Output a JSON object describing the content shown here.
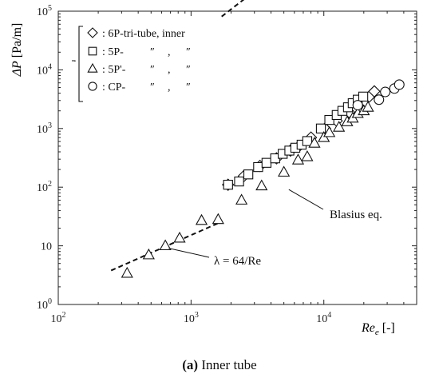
{
  "chart_data": {
    "type": "scatter",
    "xscale": "log",
    "yscale": "log",
    "xlim": [
      100,
      50000
    ],
    "ylim": [
      1,
      100000
    ],
    "x_ticks": [
      {
        "value": 100,
        "base": "10",
        "exp": "2"
      },
      {
        "value": 1000,
        "base": "10",
        "exp": "3"
      },
      {
        "value": 10000,
        "base": "10",
        "exp": "4"
      }
    ],
    "y_ticks": [
      {
        "value": 1,
        "label": "10",
        "exp": "0"
      },
      {
        "value": 10,
        "label": "10",
        "exp": ""
      },
      {
        "value": 100,
        "label": "10",
        "exp": "2"
      },
      {
        "value": 1000,
        "label": "10",
        "exp": "3"
      },
      {
        "value": 10000,
        "label": "10",
        "exp": "4"
      },
      {
        "value": 100000,
        "label": "10",
        "exp": "5"
      }
    ],
    "ylabel": {
      "main": "ΔP",
      "unit": " [Pa/m]"
    },
    "xlabel": {
      "main": "Re",
      "sub": "e",
      "unit": " [-]"
    },
    "legend_position": "top-left",
    "series": [
      {
        "name": "6P-tri-tube, inner",
        "marker": "diamond",
        "label_parts": [
          ": 6P-tri-tube, inner"
        ],
        "points": [
          [
            1900,
            110
          ],
          [
            2500,
            155
          ],
          [
            3300,
            230
          ],
          [
            4400,
            310
          ],
          [
            5600,
            420
          ],
          [
            6500,
            500
          ],
          [
            8000,
            700
          ],
          [
            10200,
            1000
          ],
          [
            12500,
            1350
          ],
          [
            15500,
            1900
          ],
          [
            18000,
            2500
          ],
          [
            22000,
            3500
          ],
          [
            24000,
            4300
          ]
        ]
      },
      {
        "name": "5P-",
        "marker": "square",
        "label_parts": [
          ": 5P-",
          "″",
          ",",
          "″"
        ],
        "points": [
          [
            1900,
            110
          ],
          [
            2300,
            125
          ],
          [
            2700,
            165
          ],
          [
            3200,
            220
          ],
          [
            3700,
            260
          ],
          [
            4300,
            310
          ],
          [
            4900,
            370
          ],
          [
            5500,
            420
          ],
          [
            6100,
            470
          ],
          [
            6800,
            530
          ],
          [
            7500,
            610
          ],
          [
            9500,
            1000
          ],
          [
            11000,
            1400
          ],
          [
            12500,
            1700
          ],
          [
            13800,
            2000
          ],
          [
            15200,
            2300
          ],
          [
            16500,
            2700
          ],
          [
            18000,
            3100
          ],
          [
            19800,
            3500
          ]
        ]
      },
      {
        "name": "5P'-",
        "marker": "triangle",
        "label_parts": [
          ": 5P'-",
          "″",
          ",",
          "″"
        ],
        "points": [
          [
            330,
            3.4
          ],
          [
            480,
            7
          ],
          [
            640,
            10
          ],
          [
            820,
            13.5
          ],
          [
            1200,
            27
          ],
          [
            1600,
            28
          ],
          [
            2400,
            60
          ],
          [
            3400,
            105
          ],
          [
            5000,
            180
          ],
          [
            6400,
            290
          ],
          [
            7500,
            330
          ],
          [
            8500,
            560
          ],
          [
            10000,
            700
          ],
          [
            11000,
            850
          ],
          [
            13000,
            1050
          ],
          [
            15000,
            1300
          ],
          [
            16500,
            1500
          ],
          [
            18000,
            1800
          ],
          [
            20000,
            2000
          ],
          [
            21500,
            2300
          ]
        ]
      },
      {
        "name": "CP-",
        "marker": "circle",
        "label_parts": [
          ": CP-",
          "″",
          ",",
          "″"
        ],
        "points": [
          [
            26000,
            3100
          ],
          [
            29000,
            4200
          ],
          [
            34000,
            4800
          ],
          [
            37000,
            5600
          ],
          [
            18000,
            2500
          ]
        ]
      }
    ],
    "curves": [
      {
        "name": "Blasius eq.",
        "x_range": [
          1700,
          36000
        ],
        "formula": "blasius"
      },
      {
        "name": "λ = 64/Re",
        "x_range": [
          250,
          1700
        ],
        "formula": "laminar"
      }
    ],
    "annotations": [
      {
        "text": "Blasius eq.",
        "target": [
          5300,
          100
        ]
      },
      {
        "text": "λ = 64/Re",
        "target": [
          660,
          10
        ]
      }
    ],
    "caption": {
      "label": "(a)",
      "text": " Inner tube"
    }
  }
}
